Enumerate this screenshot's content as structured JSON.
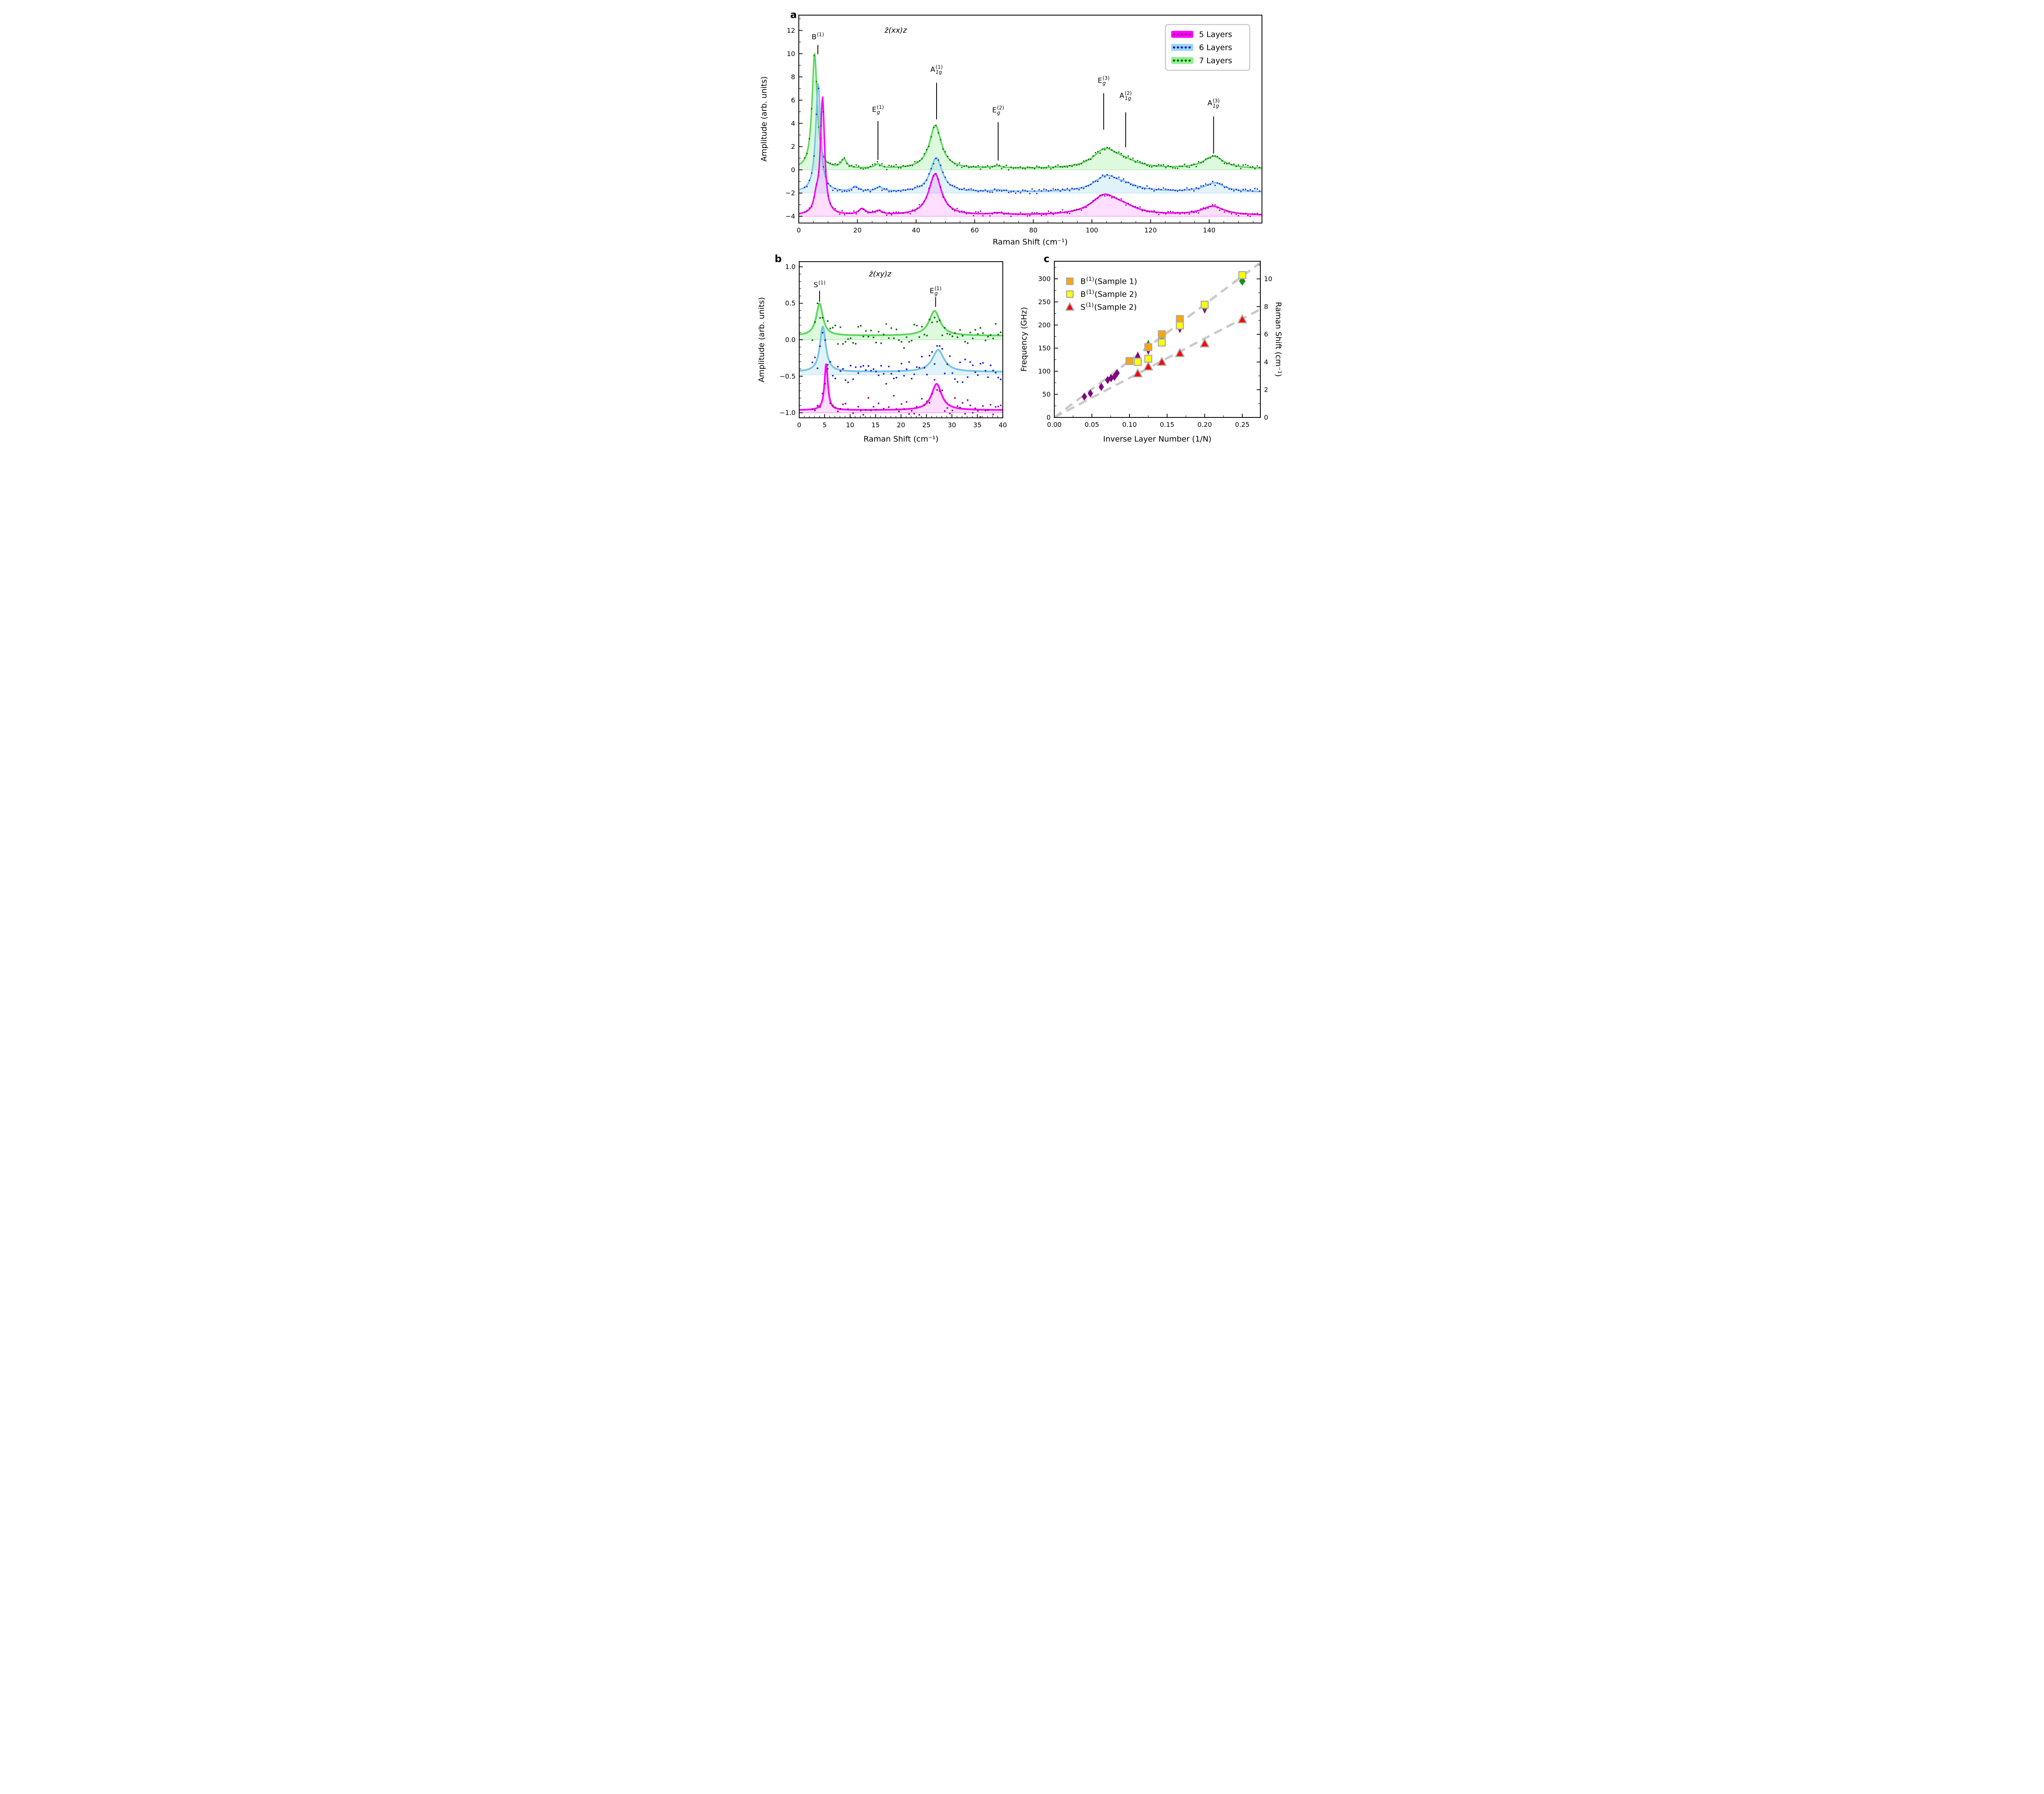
{
  "figure": {
    "background": "#ffffff"
  },
  "chart_data": [
    {
      "id": "a",
      "panel_label": "a",
      "type": "line",
      "title": "z̄(xx)z",
      "xlabel": "Raman Shift (cm⁻¹)",
      "ylabel": "Amplitude (arb. units)",
      "xlim": [
        0,
        158
      ],
      "ylim": [
        -4.58,
        13.32
      ],
      "xticks": {
        "values": [
          0,
          20,
          40,
          60,
          80,
          100,
          120,
          140
        ],
        "labels": [
          "0",
          "20",
          "40",
          "60",
          "80",
          "100",
          "120",
          "140"
        ],
        "minor_step": 5
      },
      "yticks": {
        "values": [
          -4,
          -2,
          0,
          2,
          4,
          6,
          8,
          10,
          12
        ],
        "labels": [
          "−4",
          "−2",
          "0",
          "2",
          "4",
          "6",
          "8",
          "10",
          "12"
        ],
        "minor_step": 1
      },
      "legend": {
        "position": "upper right",
        "items": [
          {
            "label": "5 Layers",
            "band": "#FF00FF",
            "dots": "#8B008B"
          },
          {
            "label": "6 Layers",
            "band": "#9DD4F0",
            "dots": "#1515E0"
          },
          {
            "label": "7 Layers",
            "band": "#90EE90",
            "dots": "#006400"
          }
        ]
      },
      "series": [
        {
          "name": "7 Layers",
          "offset": 0.07,
          "baseline": 0.0,
          "curve_color": "#5CD65C",
          "fill_color": "rgba(144,238,144,0.30)",
          "dot_color": "#006400",
          "noise": 0.12,
          "seed": 33,
          "dot_start": 2.0,
          "dot_step": 0.8,
          "peaks": [
            [
              5.4,
              9.9,
              1.05
            ],
            [
              15.4,
              0.75,
              1.1
            ],
            [
              27.0,
              0.33,
              1.4
            ],
            [
              46.6,
              3.72,
              2.5
            ],
            [
              67.5,
              0.18,
              2.5
            ],
            [
              104.5,
              1.55,
              5.0
            ],
            [
              111.0,
              0.5,
              5.5
            ],
            [
              141.5,
              1.05,
              4.2
            ]
          ]
        },
        {
          "name": "6 Layers",
          "offset": -1.93,
          "baseline": -2.0,
          "curve_color": "#79C3E6",
          "fill_color": "rgba(135,206,235,0.25)",
          "dot_color": "#1515E0",
          "noise": 0.12,
          "seed": 22,
          "dot_start": 2.0,
          "dot_step": 0.8,
          "peaks": [
            [
              6.6,
              9.35,
              1.0
            ],
            [
              19.3,
              0.42,
              1.4
            ],
            [
              27.5,
              0.38,
              1.5
            ],
            [
              46.9,
              2.95,
              2.5
            ],
            [
              68.0,
              0.15,
              2.5
            ],
            [
              104.8,
              1.25,
              5.0
            ],
            [
              111.3,
              0.45,
              5.5
            ],
            [
              141.8,
              0.78,
              4.2
            ]
          ]
        },
        {
          "name": "5 Layers",
          "offset": -3.93,
          "baseline": -4.0,
          "curve_color": "#FF00FF",
          "fill_color": "rgba(255,0,255,0.13)",
          "dot_color": "#8B008B",
          "noise": 0.12,
          "seed": 11,
          "dot_start": 2.0,
          "dot_step": 0.8,
          "peaks": [
            [
              8.1,
              9.95,
              0.85
            ],
            [
              6.0,
              1.2,
              1.0
            ],
            [
              21.6,
              0.5,
              1.4
            ],
            [
              27.2,
              0.32,
              1.5
            ],
            [
              46.5,
              3.55,
              2.6
            ],
            [
              68.0,
              0.15,
              2.5
            ],
            [
              104.2,
              1.6,
              5.5
            ],
            [
              110.8,
              0.5,
              5.5
            ],
            [
              141.2,
              0.75,
              4.6
            ]
          ]
        }
      ],
      "annotations": [
        {
          "base": "B",
          "sub": "",
          "sup": "(1)",
          "x": 6.5,
          "label_y": 11.25,
          "line": [
            9.95,
            10.75
          ]
        },
        {
          "base": "E",
          "sub": "g",
          "sup": "(1)",
          "x": 27.0,
          "label_y": 5.0,
          "line": [
            0.85,
            4.2
          ]
        },
        {
          "base": "A",
          "sub": "1g",
          "sup": "(1)",
          "x": 47.0,
          "label_y": 8.45,
          "line": [
            4.35,
            7.5
          ]
        },
        {
          "base": "E",
          "sub": "g",
          "sup": "(2)",
          "x": 68.0,
          "label_y": 4.95,
          "line": [
            0.8,
            4.1
          ]
        },
        {
          "base": "E",
          "sub": "g",
          "sup": "(3)",
          "x": 104.0,
          "label_y": 7.5,
          "line": [
            3.45,
            6.6
          ]
        },
        {
          "base": "A",
          "sub": "1g",
          "sup": "(2)",
          "x": 111.5,
          "label_y": 6.2,
          "line": [
            1.95,
            4.95
          ]
        },
        {
          "base": "A",
          "sub": "1g",
          "sup": "(3)",
          "x": 141.5,
          "label_y": 5.55,
          "line": [
            1.4,
            4.6
          ]
        }
      ]
    },
    {
      "id": "b",
      "panel_label": "b",
      "type": "line",
      "title": "z̄(xy)z",
      "xlabel": "Raman Shift (cm⁻¹)",
      "ylabel": "Amplitude (arb. units)",
      "xlim": [
        0,
        40
      ],
      "ylim": [
        -1.07,
        1.07
      ],
      "xticks": {
        "values": [
          0,
          5,
          10,
          15,
          20,
          25,
          30,
          35,
          40
        ],
        "labels": [
          "0",
          "5",
          "10",
          "15",
          "20",
          "25",
          "30",
          "35",
          "40"
        ],
        "minor_step": 1
      },
      "yticks": {
        "values": [
          -1.0,
          -0.5,
          0.0,
          0.5,
          1.0
        ],
        "labels": [
          "−1.0",
          "−0.5",
          "0.0",
          "0.5",
          "1.0"
        ],
        "minor_step": 0.1
      },
      "series": [
        {
          "name": "7 Layers",
          "offset": 0.055,
          "baseline": 0.0,
          "curve_color": "#5CD65C",
          "fill_color": "rgba(144,238,144,0.30)",
          "dot_color": "#006400",
          "noise": 0.1,
          "seed": 66,
          "dot_start": 2.6,
          "dot_step": 0.5,
          "peaks": [
            [
              4.0,
              0.44,
              0.8
            ],
            [
              26.6,
              0.34,
              1.3
            ]
          ]
        },
        {
          "name": "6 Layers",
          "offset": -0.44,
          "baseline": -0.48,
          "curve_color": "#79C3E6",
          "fill_color": "rgba(135,206,235,0.25)",
          "dot_color": "#1515E0",
          "noise": 0.1,
          "seed": 55,
          "dot_start": 2.6,
          "dot_step": 0.5,
          "peaks": [
            [
              4.65,
              0.62,
              0.7
            ],
            [
              27.3,
              0.3,
              1.4
            ]
          ]
        },
        {
          "name": "5 Layers",
          "offset": -0.965,
          "baseline": -1.0,
          "curve_color": "#FF00FF",
          "fill_color": "rgba(255,0,255,0.13)",
          "dot_color": "#8B008B",
          "noise": 0.1,
          "seed": 44,
          "dot_start": 2.6,
          "dot_step": 0.5,
          "peaks": [
            [
              5.3,
              0.63,
              0.4
            ],
            [
              27.0,
              0.36,
              1.2
            ]
          ]
        }
      ],
      "annotations": [
        {
          "base": "S",
          "sub": "",
          "sup": "(1)",
          "x": 4.0,
          "label_y": 0.72,
          "line": [
            0.52,
            0.67
          ]
        },
        {
          "base": "E",
          "sub": "g",
          "sup": "(1)",
          "x": 26.8,
          "label_y": 0.64,
          "line": [
            0.45,
            0.585
          ]
        }
      ]
    },
    {
      "id": "c",
      "panel_label": "c",
      "type": "scatter",
      "xlabel": "Inverse Layer Number (1/N)",
      "ylabel_left": "Frequency (GHz)",
      "ylabel_right": "Raman Shift (cm⁻¹)",
      "xlim": [
        0,
        0.274
      ],
      "ylim_left": [
        0,
        338
      ],
      "ghz_per_cm1": 29.9792,
      "xticks": {
        "values": [
          0.0,
          0.05,
          0.1,
          0.15,
          0.2,
          0.25
        ],
        "labels": [
          "0.00",
          "0.05",
          "0.10",
          "0.15",
          "0.20",
          "0.25"
        ],
        "minor_step": 0.025
      },
      "yticks_left": {
        "values": [
          0,
          50,
          100,
          150,
          200,
          250,
          300
        ],
        "labels": [
          "0",
          "50",
          "100",
          "150",
          "200",
          "250",
          "300"
        ],
        "minor_step": 25
      },
      "yticks_right": {
        "values": [
          0,
          2,
          4,
          6,
          8,
          10
        ],
        "labels": [
          "0",
          "2",
          "4",
          "6",
          "8",
          "10"
        ],
        "minor_step": 1
      },
      "trend_color": "#C9C9C9",
      "trend_lines": [
        {
          "x": [
            0,
            0.274
          ],
          "y": [
            0,
            335
          ]
        },
        {
          "x": [
            0,
            0.274
          ],
          "y": [
            0,
            234
          ]
        }
      ],
      "legend": {
        "position": "upper left",
        "items": [
          {
            "marker": "square",
            "fill": "#FFA500",
            "edge": "#A9A9A9",
            "base": "B",
            "sup": "(1)",
            "rest": " (Sample 1)"
          },
          {
            "marker": "square",
            "fill": "#FFFF00",
            "edge": "#A9A9A9",
            "base": "B",
            "sup": "(1)",
            "rest": " (Sample 2)"
          },
          {
            "marker": "triangle-up",
            "fill": "#FF0000",
            "edge": "#A9A9A9",
            "base": "S",
            "sup": "(1)",
            "rest": " (Sample 2)"
          }
        ]
      },
      "series": [
        {
          "name": "purple-diamonds",
          "marker": "diamond",
          "fill": "#800080",
          "edge": "none",
          "size": [
            13,
            20
          ],
          "points": [
            [
              0.04,
              45
            ],
            [
              0.048,
              52
            ],
            [
              0.0625,
              66
            ],
            [
              0.071,
              81
            ],
            [
              0.0755,
              85
            ],
            [
              0.08,
              88
            ],
            [
              0.0835,
              96
            ]
          ]
        },
        {
          "name": "purple-triangle-up",
          "marker": "triangle-up",
          "fill": "#800080",
          "edge": "none",
          "size": [
            14,
            14
          ],
          "points": [
            [
              0.111,
              135
            ]
          ]
        },
        {
          "name": "purple-triangle-down",
          "marker": "triangle-down",
          "fill": "#800080",
          "edge": "none",
          "size": [
            14,
            14
          ],
          "points": [
            [
              0.125,
              143
            ],
            [
              0.143,
              169
            ],
            [
              0.167,
              190
            ],
            [
              0.2,
              232
            ]
          ]
        },
        {
          "name": "green-triangle-up",
          "marker": "triangle-up",
          "fill": "#1F8B1F",
          "edge": "none",
          "size": [
            13,
            13
          ],
          "points": [
            [
              0.125,
              161
            ],
            [
              0.167,
              207
            ]
          ]
        },
        {
          "name": "green-triangle-down",
          "marker": "triangle-down",
          "fill": "#1F8B1F",
          "edge": "none",
          "size": [
            13,
            13
          ],
          "points": [
            [
              0.2,
              237
            ]
          ]
        },
        {
          "name": "green-diamond",
          "marker": "diamond",
          "fill": "#1F8B1F",
          "edge": "none",
          "size": [
            12,
            16
          ],
          "points": [
            [
              0.143,
              172
            ]
          ]
        },
        {
          "name": "green-diamond-large",
          "marker": "diamond",
          "fill": "#1F8B1F",
          "edge": "none",
          "size": [
            16,
            22
          ],
          "points": [
            [
              0.25,
              295
            ]
          ]
        },
        {
          "name": "B1-sample-1",
          "marker": "square",
          "fill": "#FFA500",
          "edge": "#A9A9A9",
          "size": [
            17,
            17
          ],
          "points": [
            [
              0.1,
              122
            ],
            [
              0.125,
              152
            ],
            [
              0.143,
              180
            ],
            [
              0.167,
              213
            ]
          ]
        },
        {
          "name": "B1-sample-2",
          "marker": "square",
          "fill": "#FFFF00",
          "edge": "#A9A9A9",
          "size": [
            17,
            17
          ],
          "points": [
            [
              0.111,
              120
            ],
            [
              0.125,
              127
            ],
            [
              0.143,
              162
            ],
            [
              0.167,
              199
            ],
            [
              0.2,
              244
            ],
            [
              0.25,
              308
            ]
          ]
        },
        {
          "name": "S1-sample-2",
          "marker": "triangle-up",
          "fill": "#FF0000",
          "edge": "#A9A9A9",
          "size": [
            20,
            17
          ],
          "points": [
            [
              0.111,
              95
            ],
            [
              0.125,
              110
            ],
            [
              0.143,
              120
            ],
            [
              0.167,
              139
            ],
            [
              0.2,
              160
            ],
            [
              0.25,
              212
            ]
          ]
        }
      ]
    }
  ]
}
